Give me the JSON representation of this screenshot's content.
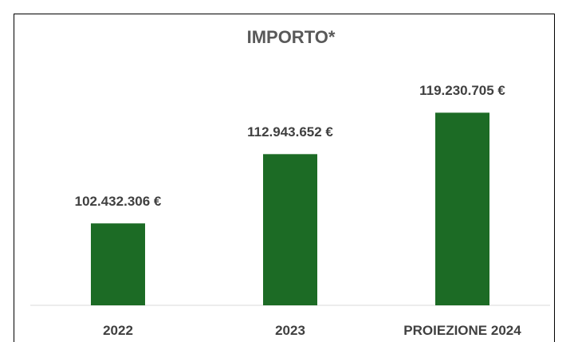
{
  "chart_data": {
    "type": "bar",
    "title": "IMPORTO*",
    "categories": [
      "2022",
      "2023",
      "PROIEZIONE 2024"
    ],
    "values": [
      102432306,
      112943652,
      119230705
    ],
    "value_labels": [
      "102.432.306 €",
      "112.943.652 €",
      "119.230.705 €"
    ],
    "color": "#1c6b25",
    "ylim": [
      90000000,
      120000000
    ]
  }
}
